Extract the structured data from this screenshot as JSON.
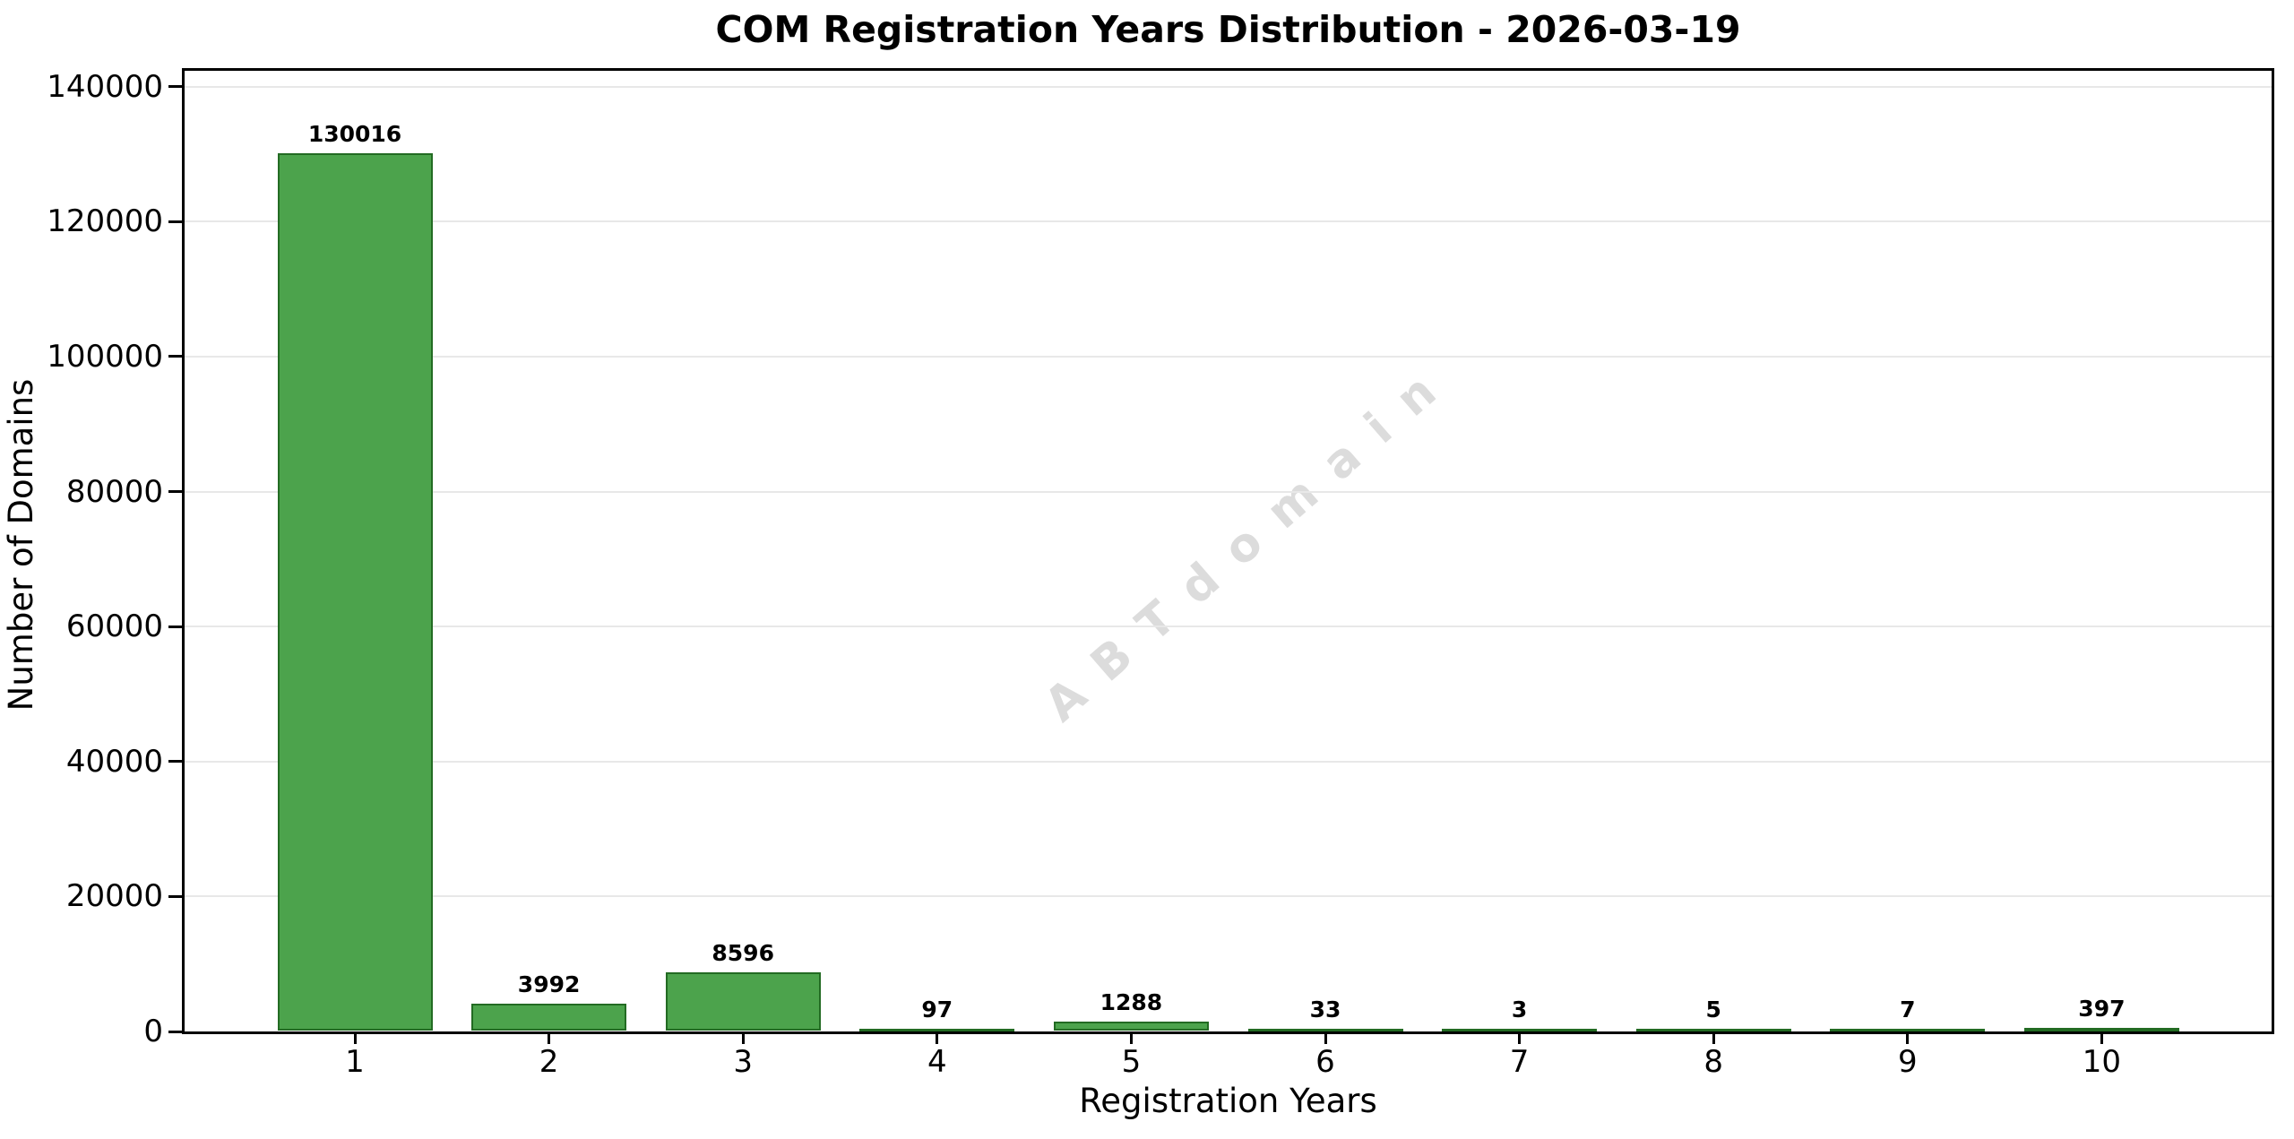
{
  "chart_data": {
    "type": "bar",
    "title": "COM Registration Years Distribution - 2026-03-19",
    "xlabel": "Registration Years",
    "ylabel": "Number of Domains",
    "categories": [
      "1",
      "2",
      "3",
      "4",
      "5",
      "6",
      "7",
      "8",
      "9",
      "10"
    ],
    "values": [
      130016,
      3992,
      8596,
      97,
      1288,
      33,
      3,
      5,
      7,
      397
    ],
    "bar_value_labels": [
      "130016",
      "3992",
      "8596",
      "97",
      "1288",
      "33",
      "3",
      "5",
      "7",
      "397"
    ],
    "yticks": [
      0,
      20000,
      40000,
      60000,
      80000,
      100000,
      120000,
      140000
    ],
    "ytick_labels": [
      "0",
      "20000",
      "40000",
      "60000",
      "80000",
      "100000",
      "120000",
      "140000"
    ],
    "ylim": [
      0,
      142750
    ],
    "grid": "horizontal",
    "legend": "none",
    "bar_fill_color": "#4CA34C",
    "bar_edge_color": "#236B23",
    "grid_color": "#e8e8e8",
    "axis_color": "#000000",
    "watermark": {
      "text": "ABTdomain",
      "color": "#dcdcdc",
      "rotation_deg": -41
    }
  }
}
